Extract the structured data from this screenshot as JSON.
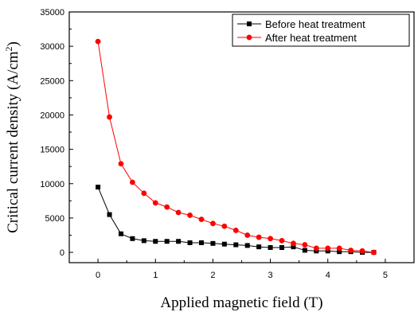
{
  "chart_data": {
    "type": "line",
    "title": "",
    "xlabel": "Applied magnetic field (T)",
    "ylabel": "Critical current density (A/cm",
    "ylabel_superscript": "2",
    "ylabel_close": ")",
    "xlim": [
      -0.5,
      5.5
    ],
    "ylim": [
      -1500,
      35000
    ],
    "x_ticks": [
      0,
      1,
      2,
      3,
      4,
      5
    ],
    "x_tick_labels": [
      "0",
      "1",
      "2",
      "3",
      "4",
      "5"
    ],
    "y_ticks": [
      0,
      5000,
      10000,
      15000,
      20000,
      25000,
      30000,
      35000
    ],
    "y_tick_labels": [
      "0",
      "5000",
      "10000",
      "15000",
      "20000",
      "25000",
      "30000",
      "35000"
    ],
    "grid": false,
    "legend_position": "top-right",
    "series": [
      {
        "name": "Before heat treatment",
        "color": "#000000",
        "marker": "square",
        "x": [
          0,
          0.2,
          0.4,
          0.6,
          0.8,
          1.0,
          1.2,
          1.4,
          1.6,
          1.8,
          2.0,
          2.2,
          2.4,
          2.6,
          2.8,
          3.0,
          3.2,
          3.4,
          3.6,
          3.8,
          4.0,
          4.2,
          4.4,
          4.6,
          4.8
        ],
        "y": [
          9500,
          5500,
          2700,
          2000,
          1700,
          1600,
          1600,
          1600,
          1400,
          1400,
          1300,
          1200,
          1100,
          1000,
          800,
          700,
          700,
          800,
          300,
          200,
          200,
          100,
          100,
          0,
          0
        ]
      },
      {
        "name": "After heat treatment",
        "color": "#ff0000",
        "marker": "circle",
        "x": [
          0,
          0.2,
          0.4,
          0.6,
          0.8,
          1.0,
          1.2,
          1.4,
          1.6,
          1.8,
          2.0,
          2.2,
          2.4,
          2.6,
          2.8,
          3.0,
          3.2,
          3.4,
          3.6,
          3.8,
          4.0,
          4.2,
          4.4,
          4.6,
          4.8
        ],
        "y": [
          30700,
          19700,
          12900,
          10200,
          8600,
          7200,
          6600,
          5800,
          5400,
          4800,
          4200,
          3800,
          3200,
          2500,
          2200,
          2000,
          1700,
          1300,
          1100,
          600,
          600,
          600,
          300,
          200,
          0
        ]
      }
    ]
  }
}
